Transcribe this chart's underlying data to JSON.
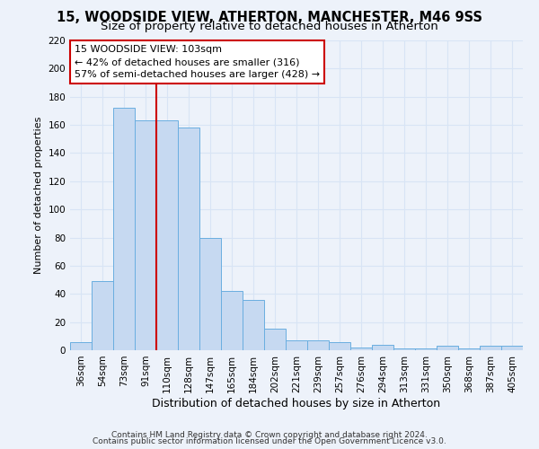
{
  "title1": "15, WOODSIDE VIEW, ATHERTON, MANCHESTER, M46 9SS",
  "title2": "Size of property relative to detached houses in Atherton",
  "xlabel": "Distribution of detached houses by size in Atherton",
  "ylabel": "Number of detached properties",
  "footnote1": "Contains HM Land Registry data © Crown copyright and database right 2024.",
  "footnote2": "Contains public sector information licensed under the Open Government Licence v3.0.",
  "bar_labels": [
    "36sqm",
    "54sqm",
    "73sqm",
    "91sqm",
    "110sqm",
    "128sqm",
    "147sqm",
    "165sqm",
    "184sqm",
    "202sqm",
    "221sqm",
    "239sqm",
    "257sqm",
    "276sqm",
    "294sqm",
    "313sqm",
    "331sqm",
    "350sqm",
    "368sqm",
    "387sqm",
    "405sqm"
  ],
  "bar_values": [
    6,
    49,
    172,
    163,
    163,
    158,
    80,
    42,
    36,
    15,
    7,
    7,
    6,
    2,
    4,
    1,
    1,
    3,
    1,
    3,
    3
  ],
  "bar_color": "#c6d9f1",
  "bar_edge_color": "#6aaee0",
  "annotation_line1": "15 WOODSIDE VIEW: 103sqm",
  "annotation_line2": "← 42% of detached houses are smaller (316)",
  "annotation_line3": "57% of semi-detached houses are larger (428) →",
  "annotation_box_facecolor": "#ffffff",
  "annotation_box_edgecolor": "#cc0000",
  "vline_color": "#cc0000",
  "vline_pos": 3.5,
  "ylim": [
    0,
    220
  ],
  "yticks": [
    0,
    20,
    40,
    60,
    80,
    100,
    120,
    140,
    160,
    180,
    200,
    220
  ],
  "background_color": "#edf2fa",
  "grid_color": "#d8e4f5",
  "title1_fontsize": 10.5,
  "title2_fontsize": 9.5,
  "ylabel_fontsize": 8,
  "xlabel_fontsize": 9,
  "annotation_fontsize": 8,
  "tick_fontsize": 7.5,
  "footnote_fontsize": 6.5
}
